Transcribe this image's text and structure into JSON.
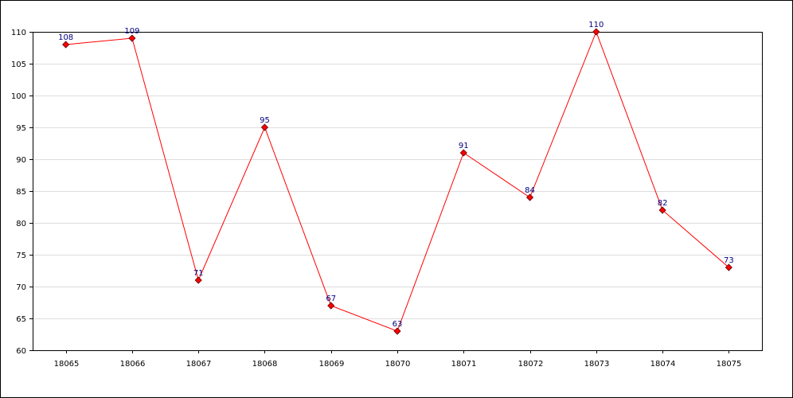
{
  "chart_data": {
    "type": "line",
    "title": "",
    "xlabel": "",
    "ylabel": "",
    "categories": [
      "18065",
      "18066",
      "18067",
      "18068",
      "18069",
      "18070",
      "18071",
      "18072",
      "18073",
      "18074",
      "18075"
    ],
    "series": [
      {
        "values": [
          108,
          109,
          71,
          95,
          67,
          63,
          91,
          84,
          110,
          82,
          73
        ],
        "line_color": "#ff0000",
        "marker_color": "#ff0000",
        "marker": "diamond"
      }
    ],
    "ylim": [
      60,
      110
    ],
    "y_ticks": [
      60,
      65,
      70,
      75,
      80,
      85,
      90,
      95,
      100,
      105,
      110
    ],
    "grid": true,
    "grid_color": "#dddddd",
    "data_labels": true,
    "data_label_color": "#000080"
  }
}
